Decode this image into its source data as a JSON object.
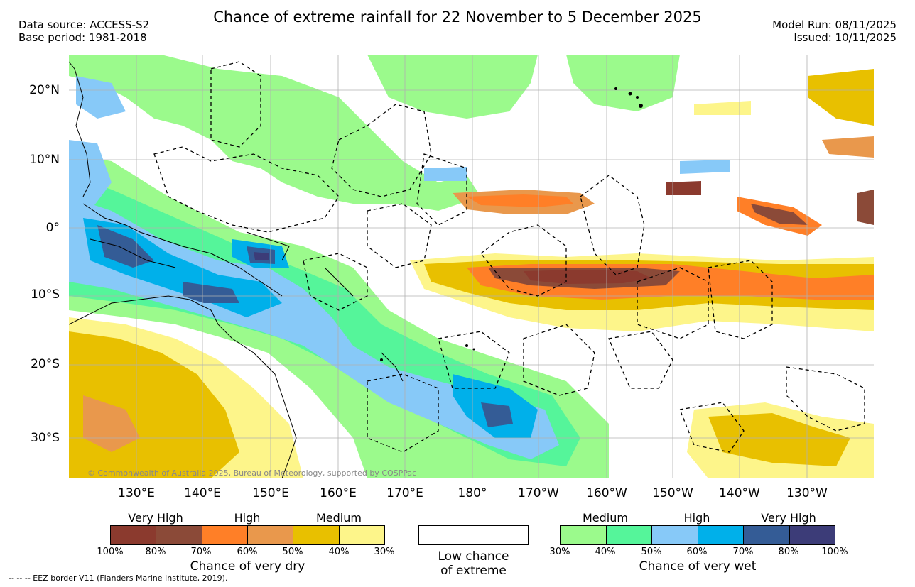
{
  "header": {
    "title": "Chance of extreme rainfall for 22 November to 5 December 2025",
    "data_source": "Data source: ACCESS-S2",
    "base_period": "Base period: 1981-2018",
    "model_run": "Model Run: 08/11/2025",
    "issued": "Issued: 10/11/2025"
  },
  "axes": {
    "lat_labels": [
      "20°N",
      "10°N",
      "0°",
      "10°S",
      "20°S",
      "30°S"
    ],
    "lon_labels": [
      "130°E",
      "140°E",
      "150°E",
      "160°E",
      "170°E",
      "180°",
      "170°W",
      "160°W",
      "150°W",
      "140°W",
      "130°W"
    ]
  },
  "map": {
    "copyright": "© Commonwealth of Australia 2025, Bureau of Meteorology, supported by COSPPac"
  },
  "legend": {
    "dry": {
      "categories": [
        "Very High",
        "High",
        "Medium"
      ],
      "ticks": [
        "100%",
        "80%",
        "70%",
        "60%",
        "50%",
        "40%",
        "30%"
      ],
      "colors": [
        "#8b3a2e",
        "#8b4a38",
        "#ff7f27",
        "#e9984c",
        "#e8c000",
        "#fdf58a"
      ],
      "title": "Chance of very dry"
    },
    "low": {
      "title_line1": "Low chance",
      "title_line2": "of extreme"
    },
    "wet": {
      "categories": [
        "Medium",
        "High",
        "Very High"
      ],
      "ticks": [
        "30%",
        "40%",
        "50%",
        "60%",
        "70%",
        "80%",
        "100%"
      ],
      "colors": [
        "#9bfa8c",
        "#55f59a",
        "#87c9f8",
        "#00b0ea",
        "#345c96",
        "#3c3c78"
      ],
      "title": "Chance of very wet"
    }
  },
  "footer": {
    "eez_note": "--  --  -- EEZ border V11 (Flanders Marine Institute, 2019)."
  }
}
